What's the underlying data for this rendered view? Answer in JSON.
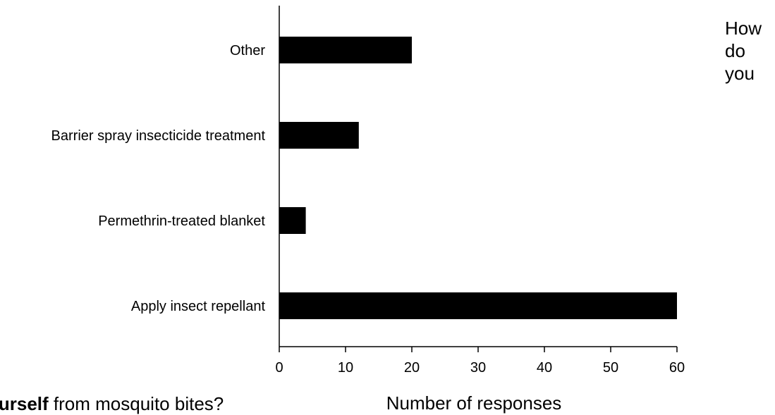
{
  "chart_data": {
    "type": "bar",
    "orientation": "horizontal",
    "categories": [
      "Apply insect repellant",
      "Permethrin-treated blanket",
      "Barrier spray insecticide treatment",
      "Other"
    ],
    "values": [
      60,
      4,
      12,
      20
    ],
    "xlabel": "Number of responses",
    "ylabel": "",
    "xlim": [
      0,
      60
    ],
    "xticks": [
      0,
      10,
      20,
      30,
      40,
      50,
      60
    ],
    "grid": false,
    "legend": "none",
    "bar_color": "#000000",
    "title_side": [
      "How",
      "do",
      "you"
    ],
    "title_bottom_bold": "ourself",
    "title_bottom_rest": " from mosquito bites?"
  }
}
